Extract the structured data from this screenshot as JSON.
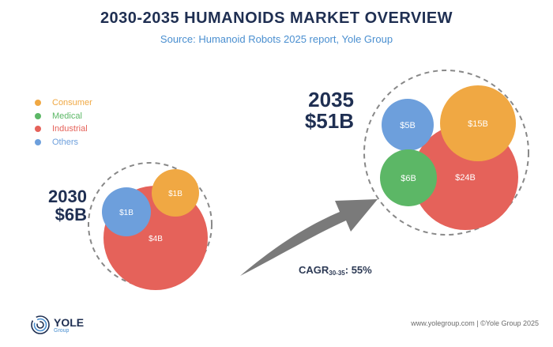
{
  "chart_data": {
    "type": "bubble",
    "title": "2030-2035 HUMANOIDS MARKET OVERVIEW",
    "subtitle": "Source: Humanoid Robots 2025 report, Yole Group",
    "legend": [
      {
        "name": "Consumer",
        "color": "#f0a843"
      },
      {
        "name": "Medical",
        "color": "#5cb766"
      },
      {
        "name": "Industrial",
        "color": "#e5625a"
      },
      {
        "name": "Others",
        "color": "#6d9fdc"
      }
    ],
    "groups": [
      {
        "year": "2030",
        "total_label": "$6B",
        "total": 6,
        "bubbles": [
          {
            "segment": "Industrial",
            "value": 4,
            "label": "$4B"
          },
          {
            "segment": "Others",
            "value": 1,
            "label": "$1B"
          },
          {
            "segment": "Consumer",
            "value": 1,
            "label": "$1B"
          }
        ]
      },
      {
        "year": "2035",
        "total_label": "$51B",
        "total": 51,
        "bubbles": [
          {
            "segment": "Industrial",
            "value": 24,
            "label": "$24B"
          },
          {
            "segment": "Consumer",
            "value": 15,
            "label": "$15B"
          },
          {
            "segment": "Others",
            "value": 5,
            "label": "$5B"
          },
          {
            "segment": "Medical",
            "value": 6,
            "label": "$6B"
          }
        ]
      }
    ],
    "annotation": {
      "prefix": "CAGR",
      "subscript": "30-35",
      "suffix": ": 55%"
    }
  },
  "footer": {
    "logo_name": "YOLE",
    "logo_sub": "Group",
    "credit": "www.yolegroup.com | ©Yole Group 2025"
  }
}
